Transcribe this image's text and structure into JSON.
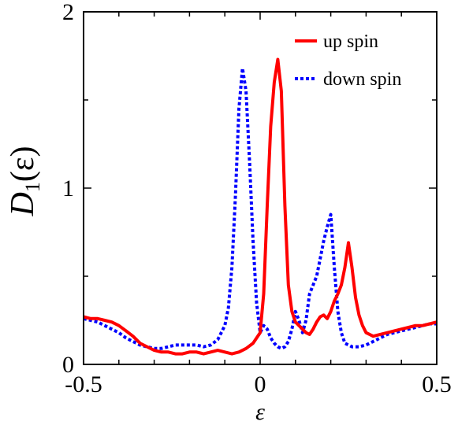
{
  "chart_data": {
    "type": "line",
    "xlabel": "ε",
    "ylabel": "D1(ε)",
    "ylabel_main": "D",
    "ylabel_sub": "1",
    "ylabel_paren": "(ε)",
    "xlim": [
      -0.5,
      0.5
    ],
    "ylim": [
      0,
      2
    ],
    "xticks": [
      -0.5,
      0,
      0.5
    ],
    "xtick_labels": [
      "-0.5",
      "0",
      "0.5"
    ],
    "yticks": [
      0,
      1,
      2
    ],
    "ytick_labels": [
      "0",
      "1",
      "2"
    ],
    "grid": false,
    "legend_position": "top-right",
    "series": [
      {
        "name": "up spin",
        "color": "#ff0000",
        "style": "solid",
        "x": [
          -0.5,
          -0.48,
          -0.46,
          -0.44,
          -0.42,
          -0.4,
          -0.38,
          -0.36,
          -0.34,
          -0.32,
          -0.3,
          -0.28,
          -0.26,
          -0.24,
          -0.22,
          -0.2,
          -0.18,
          -0.16,
          -0.14,
          -0.12,
          -0.1,
          -0.08,
          -0.06,
          -0.04,
          -0.02,
          0.0,
          0.01,
          0.02,
          0.03,
          0.04,
          0.05,
          0.06,
          0.07,
          0.08,
          0.09,
          0.1,
          0.11,
          0.12,
          0.13,
          0.14,
          0.15,
          0.16,
          0.17,
          0.18,
          0.19,
          0.2,
          0.21,
          0.22,
          0.23,
          0.24,
          0.25,
          0.26,
          0.27,
          0.28,
          0.29,
          0.3,
          0.32,
          0.34,
          0.36,
          0.38,
          0.4,
          0.42,
          0.44,
          0.46,
          0.48,
          0.5
        ],
        "y": [
          0.27,
          0.26,
          0.26,
          0.25,
          0.24,
          0.22,
          0.19,
          0.16,
          0.12,
          0.1,
          0.08,
          0.07,
          0.07,
          0.06,
          0.06,
          0.07,
          0.07,
          0.06,
          0.07,
          0.08,
          0.07,
          0.06,
          0.07,
          0.09,
          0.12,
          0.18,
          0.4,
          0.9,
          1.35,
          1.6,
          1.73,
          1.55,
          0.9,
          0.45,
          0.3,
          0.24,
          0.22,
          0.2,
          0.18,
          0.17,
          0.2,
          0.24,
          0.27,
          0.28,
          0.26,
          0.3,
          0.36,
          0.4,
          0.45,
          0.55,
          0.69,
          0.55,
          0.38,
          0.28,
          0.22,
          0.18,
          0.16,
          0.17,
          0.18,
          0.19,
          0.2,
          0.21,
          0.22,
          0.22,
          0.23,
          0.24
        ]
      },
      {
        "name": "down spin",
        "color": "#0000ff",
        "style": "dotted",
        "x": [
          -0.5,
          -0.48,
          -0.46,
          -0.44,
          -0.42,
          -0.4,
          -0.38,
          -0.36,
          -0.34,
          -0.32,
          -0.3,
          -0.28,
          -0.26,
          -0.24,
          -0.22,
          -0.2,
          -0.18,
          -0.16,
          -0.14,
          -0.12,
          -0.1,
          -0.09,
          -0.08,
          -0.07,
          -0.06,
          -0.05,
          -0.04,
          -0.03,
          -0.02,
          -0.01,
          0.0,
          0.01,
          0.02,
          0.03,
          0.04,
          0.05,
          0.06,
          0.07,
          0.08,
          0.09,
          0.1,
          0.11,
          0.12,
          0.13,
          0.14,
          0.15,
          0.16,
          0.17,
          0.18,
          0.19,
          0.2,
          0.21,
          0.22,
          0.23,
          0.24,
          0.26,
          0.28,
          0.3,
          0.32,
          0.34,
          0.36,
          0.38,
          0.4,
          0.42,
          0.44,
          0.46,
          0.48,
          0.5
        ],
        "y": [
          0.26,
          0.25,
          0.24,
          0.22,
          0.2,
          0.18,
          0.15,
          0.13,
          0.11,
          0.1,
          0.09,
          0.09,
          0.1,
          0.11,
          0.11,
          0.11,
          0.11,
          0.1,
          0.11,
          0.14,
          0.22,
          0.32,
          0.55,
          0.95,
          1.45,
          1.68,
          1.55,
          1.15,
          0.7,
          0.35,
          0.18,
          0.22,
          0.2,
          0.15,
          0.12,
          0.1,
          0.09,
          0.1,
          0.13,
          0.2,
          0.3,
          0.25,
          0.18,
          0.25,
          0.4,
          0.45,
          0.5,
          0.6,
          0.7,
          0.78,
          0.85,
          0.55,
          0.3,
          0.18,
          0.12,
          0.1,
          0.1,
          0.11,
          0.13,
          0.15,
          0.17,
          0.18,
          0.19,
          0.2,
          0.21,
          0.22,
          0.23,
          0.23
        ]
      }
    ]
  }
}
